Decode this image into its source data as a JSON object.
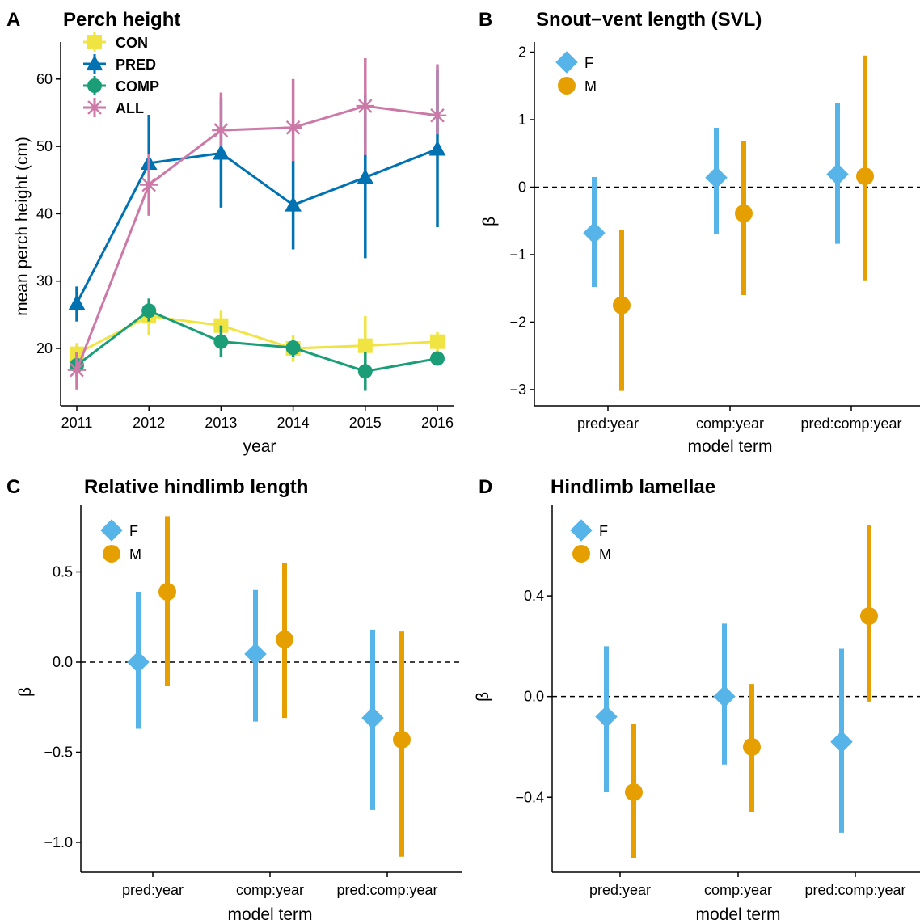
{
  "colors": {
    "CON": "#f0e442",
    "PRED": "#0072b2",
    "COMP": "#1b9e77",
    "ALL": "#cc79a7",
    "F": "#56b4e9",
    "M": "#e69f00"
  },
  "chart_data": [
    {
      "panel": "A",
      "title": "Perch height",
      "type": "line",
      "xlabel": "year",
      "ylabel": "mean perch height (cm)",
      "x": [
        2011,
        2012,
        2013,
        2014,
        2015,
        2016
      ],
      "x_tick_labels": [
        "2011",
        "2012",
        "2013",
        "2014",
        "2015",
        "2016"
      ],
      "y_ticks": [
        20,
        30,
        40,
        50,
        60
      ],
      "y_tick_labels": [
        "20",
        "30",
        "40",
        "50",
        "60"
      ],
      "ylim": [
        12,
        66
      ],
      "legend_position": "top-left",
      "series": [
        {
          "name": "CON",
          "marker": "square",
          "values": [
            19.2,
            24.8,
            23.4,
            20.0,
            20.4,
            21.0
          ],
          "lower": [
            17.6,
            22.0,
            21.4,
            18.0,
            18.0,
            19.6
          ],
          "upper": [
            20.8,
            27.4,
            25.6,
            22.0,
            24.8,
            22.4
          ]
        },
        {
          "name": "PRED",
          "marker": "triangle",
          "values": [
            26.7,
            47.5,
            49.0,
            41.3,
            45.4,
            49.6
          ],
          "lower": [
            24.0,
            40.0,
            40.9,
            34.7,
            33.4,
            38.0
          ],
          "upper": [
            29.2,
            54.7,
            57.2,
            47.9,
            57.6,
            61.4
          ]
        },
        {
          "name": "COMP",
          "marker": "circle",
          "values": [
            17.5,
            25.6,
            21.0,
            20.1,
            16.6,
            18.5
          ],
          "lower": [
            15.8,
            24.0,
            18.7,
            18.8,
            13.7,
            17.8
          ],
          "upper": [
            19.5,
            27.4,
            23.4,
            21.3,
            19.5,
            19.3
          ]
        },
        {
          "name": "ALL",
          "marker": "asterisk",
          "values": [
            16.8,
            44.3,
            52.4,
            52.8,
            56.0,
            54.6
          ],
          "lower": [
            13.9,
            39.7,
            50.0,
            47.8,
            48.7,
            51.8
          ],
          "upper": [
            19.5,
            48.9,
            58.0,
            60.0,
            63.1,
            62.2
          ]
        }
      ]
    },
    {
      "panel": "B",
      "title": "Snout−vent length (SVL)",
      "type": "scatter",
      "xlabel": "model term",
      "ylabel": "β",
      "categories": [
        "pred:year",
        "comp:year",
        "pred:comp:year"
      ],
      "y_ticks": [
        -3,
        -2,
        -1,
        0,
        1,
        2
      ],
      "y_tick_labels": [
        "−3",
        "−2",
        "−1",
        "0",
        "1",
        "2"
      ],
      "ylim": [
        -3.15,
        2.15
      ],
      "reference_line": 0,
      "legend_position": "top-left",
      "series": [
        {
          "name": "F",
          "marker": "diamond",
          "values": [
            -0.68,
            0.14,
            0.19
          ],
          "lower": [
            -1.48,
            -0.7,
            -0.84
          ],
          "upper": [
            0.15,
            0.88,
            1.25
          ]
        },
        {
          "name": "M",
          "marker": "circle",
          "values": [
            -1.75,
            -0.39,
            0.16
          ],
          "lower": [
            -3.02,
            -1.6,
            -1.38
          ],
          "upper": [
            -0.63,
            0.68,
            1.95
          ]
        }
      ]
    },
    {
      "panel": "C",
      "title": "Relative hindlimb length",
      "type": "scatter",
      "xlabel": "model term",
      "ylabel": "β",
      "categories": [
        "pred:year",
        "comp:year",
        "pred:comp:year"
      ],
      "y_ticks": [
        -1.0,
        -0.5,
        0.0,
        0.5
      ],
      "y_tick_labels": [
        "−1.0",
        "−0.5",
        "0.0",
        "0.5"
      ],
      "ylim": [
        -1.15,
        0.87
      ],
      "reference_line": 0,
      "legend_position": "top-left",
      "series": [
        {
          "name": "F",
          "marker": "diamond",
          "values": [
            0.0,
            0.045,
            -0.31
          ],
          "lower": [
            -0.37,
            -0.33,
            -0.82
          ],
          "upper": [
            0.39,
            0.4,
            0.18
          ]
        },
        {
          "name": "M",
          "marker": "circle",
          "values": [
            0.39,
            0.125,
            -0.43
          ],
          "lower": [
            -0.13,
            -0.31,
            -1.08
          ],
          "upper": [
            0.81,
            0.55,
            0.17
          ]
        }
      ]
    },
    {
      "panel": "D",
      "title": "Hindlimb lamellae",
      "type": "scatter",
      "xlabel": "model term",
      "ylabel": "β",
      "categories": [
        "pred:year",
        "comp:year",
        "pred:comp:year"
      ],
      "y_ticks": [
        -0.4,
        0.0,
        0.4
      ],
      "y_tick_labels": [
        "−0.4",
        "0.0",
        "0.4"
      ],
      "ylim": [
        -0.68,
        0.76
      ],
      "reference_line": 0,
      "legend_position": "top-left",
      "series": [
        {
          "name": "F",
          "marker": "diamond",
          "values": [
            -0.08,
            0.0,
            -0.18
          ],
          "lower": [
            -0.38,
            -0.27,
            -0.54
          ],
          "upper": [
            0.2,
            0.29,
            0.19
          ]
        },
        {
          "name": "M",
          "marker": "circle",
          "values": [
            -0.38,
            -0.2,
            0.32
          ],
          "lower": [
            -0.64,
            -0.46,
            -0.02
          ],
          "upper": [
            -0.11,
            0.05,
            0.68
          ]
        }
      ]
    }
  ]
}
